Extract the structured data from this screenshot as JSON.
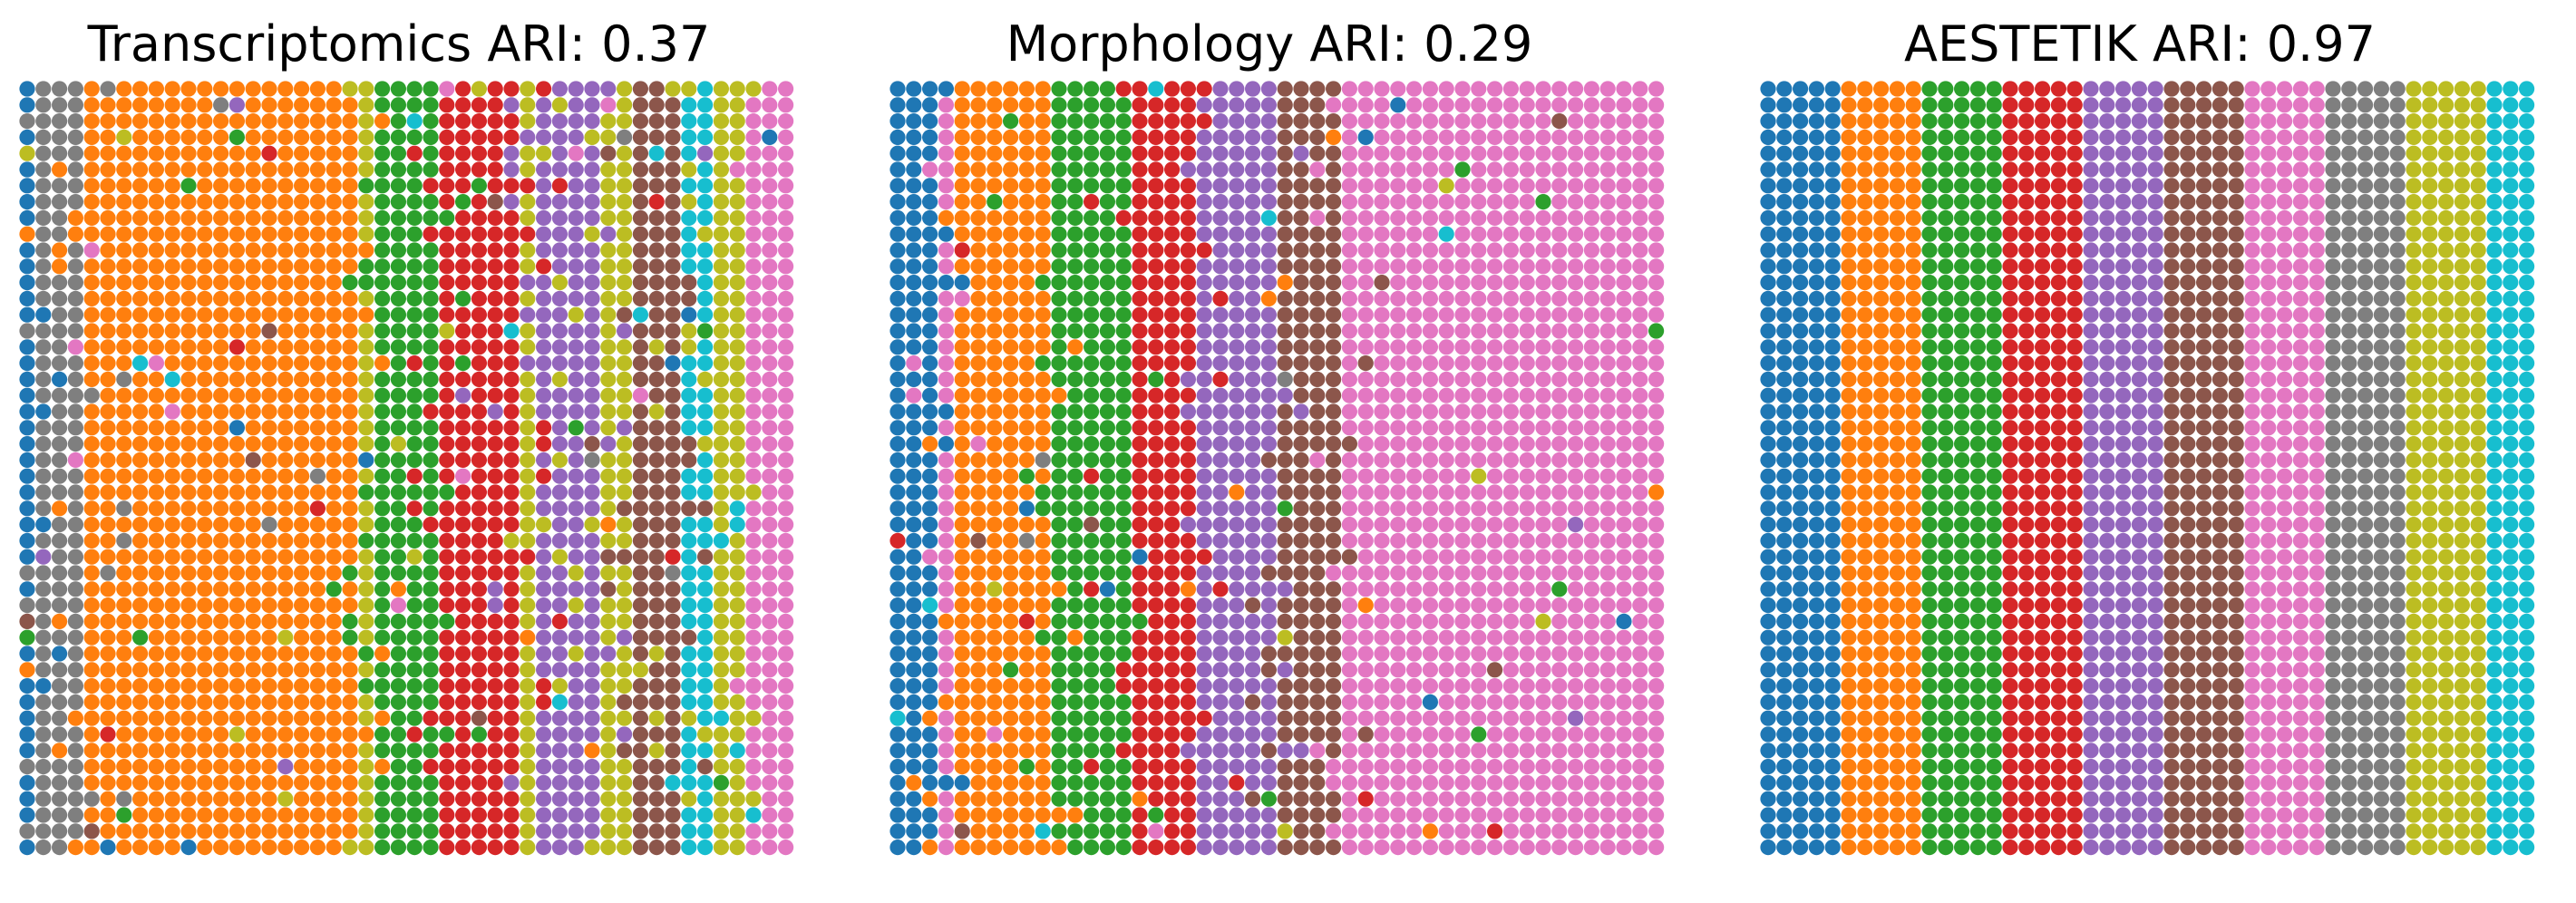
{
  "palette": {
    "blue": "#1f77b4",
    "orange": "#ff7f0e",
    "green": "#2ca02c",
    "red": "#d62728",
    "purple": "#9467bd",
    "brown": "#8c564b",
    "pink": "#e377c2",
    "gray": "#7f7f7f",
    "olive": "#bcbd22",
    "cyan": "#17becf"
  },
  "chart_data": [
    {
      "type": "scatter",
      "title": "Transcriptomics ARI: 0.37",
      "grid": false,
      "axes": "off",
      "description_of_values": "spatial spot grid, 48 columns x 48 rows, each spot colored by cluster",
      "columns": 48,
      "rows": 48,
      "column_clusters": [
        "blue",
        "gray",
        "gray",
        "gray",
        "orange",
        "orange",
        "orange",
        "orange",
        "orange",
        "orange",
        "orange",
        "orange",
        "orange",
        "orange",
        "orange",
        "orange",
        "orange",
        "orange",
        "orange",
        "orange",
        "orange",
        "olive",
        "green",
        "green",
        "green",
        "green",
        "red",
        "red",
        "red",
        "red",
        "red",
        "olive",
        "purple",
        "purple",
        "purple",
        "purple",
        "olive",
        "olive",
        "brown",
        "brown",
        "brown",
        "cyan",
        "cyan",
        "olive",
        "olive",
        "pink",
        "pink",
        "pink"
      ],
      "ari": 0.37
    },
    {
      "type": "scatter",
      "title": "Morphology ARI: 0.29",
      "grid": false,
      "axes": "off",
      "columns": 48,
      "rows": 48,
      "column_clusters": [
        "blue",
        "blue",
        "blue",
        "pink",
        "orange",
        "orange",
        "orange",
        "orange",
        "orange",
        "orange",
        "green",
        "green",
        "green",
        "green",
        "green",
        "red",
        "red",
        "red",
        "red",
        "purple",
        "purple",
        "purple",
        "purple",
        "purple",
        "brown",
        "brown",
        "brown",
        "brown",
        "pink",
        "pink",
        "pink",
        "pink",
        "pink",
        "pink",
        "pink",
        "pink",
        "pink",
        "pink",
        "pink",
        "pink",
        "pink",
        "pink",
        "pink",
        "pink",
        "pink",
        "pink",
        "pink",
        "pink"
      ],
      "ari": 0.29
    },
    {
      "type": "scatter",
      "title": "AESTETIK ARI: 0.97",
      "grid": false,
      "axes": "off",
      "columns": 48,
      "rows": 48,
      "column_clusters": [
        "blue",
        "blue",
        "blue",
        "blue",
        "blue",
        "orange",
        "orange",
        "orange",
        "orange",
        "orange",
        "green",
        "green",
        "green",
        "green",
        "green",
        "red",
        "red",
        "red",
        "red",
        "red",
        "purple",
        "purple",
        "purple",
        "purple",
        "purple",
        "brown",
        "brown",
        "brown",
        "brown",
        "brown",
        "pink",
        "pink",
        "pink",
        "pink",
        "pink",
        "gray",
        "gray",
        "gray",
        "gray",
        "gray",
        "olive",
        "olive",
        "olive",
        "olive",
        "olive",
        "cyan",
        "cyan",
        "cyan"
      ],
      "ari": 0.97
    }
  ]
}
